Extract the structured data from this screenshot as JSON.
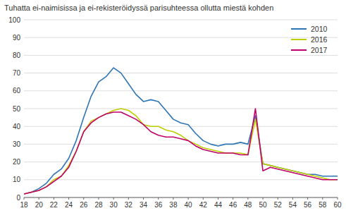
{
  "chart_data": {
    "type": "line",
    "title": "Tuhatta ei-naimisissa ja ei-rekisteröidyssä parisuhteessa ollutta miestä kohden",
    "x": [
      18,
      19,
      20,
      21,
      22,
      23,
      24,
      25,
      26,
      27,
      28,
      29,
      30,
      31,
      32,
      33,
      34,
      35,
      36,
      37,
      38,
      39,
      40,
      41,
      42,
      43,
      44,
      45,
      46,
      47,
      48,
      49,
      50,
      51,
      52,
      53,
      54,
      55,
      56,
      57,
      58,
      59,
      60
    ],
    "series": [
      {
        "name": "2010",
        "color": "#2e75b6",
        "values": [
          2,
          3,
          5,
          8,
          13,
          16,
          22,
          32,
          45,
          57,
          65,
          68,
          73,
          70,
          64,
          58,
          54,
          55,
          54,
          49,
          44,
          42,
          41,
          36,
          32,
          30,
          29,
          30,
          30,
          31,
          30,
          46,
          19,
          18,
          17,
          16,
          15,
          14,
          13,
          13,
          12,
          12,
          12
        ]
      },
      {
        "name": "2016",
        "color": "#bfce00",
        "values": [
          2,
          3,
          4,
          6,
          10,
          12,
          18,
          26,
          37,
          43,
          45,
          47,
          49,
          50,
          49,
          46,
          41,
          40,
          40,
          38,
          37,
          35,
          32,
          30,
          28,
          27,
          26,
          25,
          25,
          25,
          24,
          44,
          19,
          18,
          17,
          16,
          15,
          14,
          13,
          12,
          11,
          10,
          10
        ]
      },
      {
        "name": "2017",
        "color": "#c0006a",
        "values": [
          2,
          3,
          4,
          6,
          9,
          12,
          17,
          26,
          37,
          42,
          45,
          47,
          48,
          48,
          46,
          44,
          41,
          37,
          35,
          34,
          34,
          33,
          32,
          29,
          27,
          26,
          25,
          25,
          25,
          24,
          24,
          50,
          15,
          17,
          16,
          15,
          14,
          13,
          12,
          11,
          10,
          10,
          10
        ]
      }
    ],
    "xlim": [
      18,
      60
    ],
    "ylim": [
      0,
      100
    ],
    "xticks": [
      18,
      20,
      22,
      24,
      26,
      28,
      30,
      32,
      34,
      36,
      38,
      40,
      42,
      44,
      46,
      48,
      50,
      52,
      54,
      56,
      58,
      60
    ],
    "yticks": [
      0,
      10,
      20,
      30,
      40,
      50,
      60,
      70,
      80,
      90,
      100
    ],
    "grid": true,
    "legend": "upper right"
  }
}
